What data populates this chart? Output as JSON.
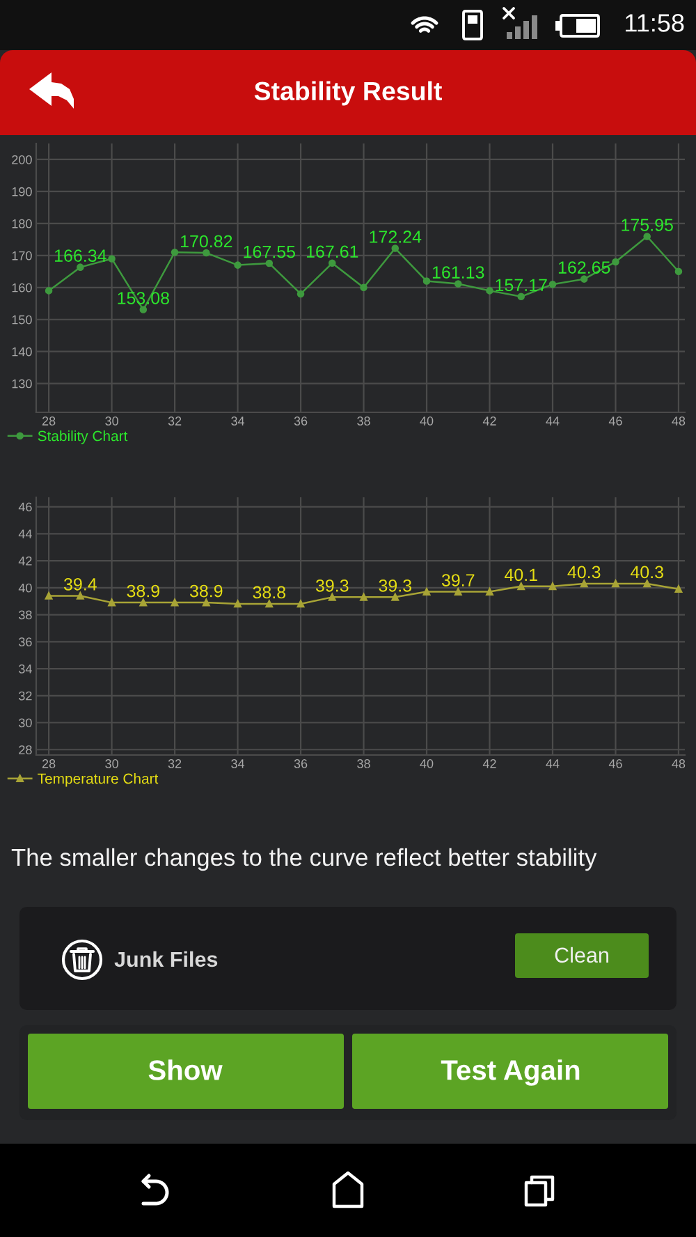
{
  "chart_data": [
    {
      "type": "other",
      "title": "Stability Result",
      "annotations": [
        "11:58"
      ]
    },
    {
      "type": "line",
      "x": [
        28,
        29,
        30,
        31,
        32,
        33,
        34,
        35,
        36,
        37,
        38,
        39,
        40,
        41,
        42,
        43,
        44,
        45,
        46,
        47,
        48
      ],
      "series": [
        {
          "name": "Stability Chart",
          "color": "#3e9a3e",
          "values": [
            159,
            166.34,
            169,
            153.08,
            171,
            170.82,
            167,
            167.55,
            158,
            167.61,
            160,
            172.24,
            162,
            161.13,
            159,
            157.17,
            161,
            162.65,
            168,
            175.95,
            165
          ],
          "value_labels": [
            null,
            "166.34",
            null,
            "153.08",
            null,
            "170.82",
            null,
            "167.55",
            null,
            "167.61",
            null,
            "172.24",
            null,
            "161.13",
            null,
            "157.17",
            null,
            "162.65",
            null,
            "175.95",
            null
          ]
        }
      ],
      "xlim": [
        27.6,
        48.2
      ],
      "xticks": [
        28,
        30,
        32,
        34,
        36,
        38,
        40,
        42,
        44,
        46,
        48
      ],
      "ylim": [
        121,
        205
      ],
      "yticks": [
        130,
        140,
        150,
        160,
        170,
        180,
        190,
        200
      ],
      "grid": true,
      "marker": "circle",
      "legend": "bottom left"
    },
    {
      "type": "line",
      "x": [
        28,
        29,
        30,
        31,
        32,
        33,
        34,
        35,
        36,
        37,
        38,
        39,
        40,
        41,
        42,
        43,
        44,
        45,
        46,
        47,
        48
      ],
      "series": [
        {
          "name": "Temperature Chart",
          "color": "#a8a436",
          "values": [
            39.4,
            39.4,
            38.9,
            38.9,
            38.9,
            38.9,
            38.8,
            38.8,
            38.8,
            39.3,
            39.3,
            39.3,
            39.7,
            39.7,
            39.7,
            40.1,
            40.1,
            40.3,
            40.3,
            40.3,
            39.9
          ],
          "value_labels": [
            null,
            "39.4",
            null,
            "38.9",
            null,
            "38.9",
            null,
            "38.8",
            null,
            "39.3",
            null,
            "39.3",
            null,
            "39.7",
            null,
            "40.1",
            null,
            "40.3",
            null,
            "40.3",
            null
          ]
        }
      ],
      "xlim": [
        27.6,
        48.2
      ],
      "xticks": [
        28,
        30,
        32,
        34,
        36,
        38,
        40,
        42,
        44,
        46,
        48
      ],
      "ylim": [
        27.6,
        46.7
      ],
      "yticks": [
        28,
        30,
        32,
        34,
        36,
        38,
        40,
        42,
        44,
        46
      ],
      "grid": true,
      "marker": "triangle",
      "legend": "bottom left"
    },
    {
      "type": "other",
      "annotations": [
        "The smaller changes to the curve reflect better stability",
        "Junk Files",
        "Clean",
        "Show",
        "Test Again"
      ]
    }
  ]
}
